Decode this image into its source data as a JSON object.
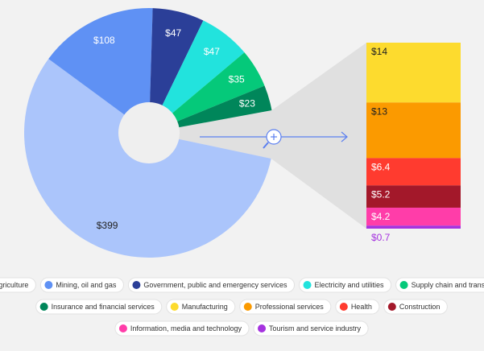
{
  "chart_data": {
    "type": "pie",
    "categories": [
      "Agriculture",
      "Mining, oil and gas",
      "Government, public and emergency services",
      "Electricity and utilities",
      "Supply chain and transport",
      "Insurance and financial services"
    ],
    "values": [
      399,
      108,
      47,
      47,
      35,
      23
    ],
    "value_labels": [
      "$399",
      "$108",
      "$47",
      "$47",
      "$35",
      "$23"
    ],
    "colors": [
      "#abc5fb",
      "#5f91f4",
      "#2b3f98",
      "#22e3dd",
      "#05c97a",
      "#00865a"
    ],
    "value_label_colors": [
      "#222222",
      "#ffffff",
      "#ffffff",
      "#ffffff",
      "#ffffff",
      "#ffffff"
    ],
    "breakdown": {
      "type": "bar",
      "categories": [
        "Manufacturing",
        "Professional services",
        "Health",
        "Construction",
        "Information, media and technology",
        "Tourism and service industry"
      ],
      "values": [
        14,
        13,
        6.4,
        5.2,
        4.2,
        0.7
      ],
      "value_labels": [
        "$14",
        "$13",
        "$6.4",
        "$5.2",
        "$4.2",
        "$0.7"
      ],
      "colors": [
        "#fddb2e",
        "#fb9a00",
        "#ff3b2f",
        "#a3182a",
        "#ff3da9",
        "#a533df"
      ],
      "value_label_colors": [
        "#222222",
        "#222222",
        "#ffffff",
        "#ffffff",
        "#ffffff",
        "#a533df"
      ]
    }
  }
}
